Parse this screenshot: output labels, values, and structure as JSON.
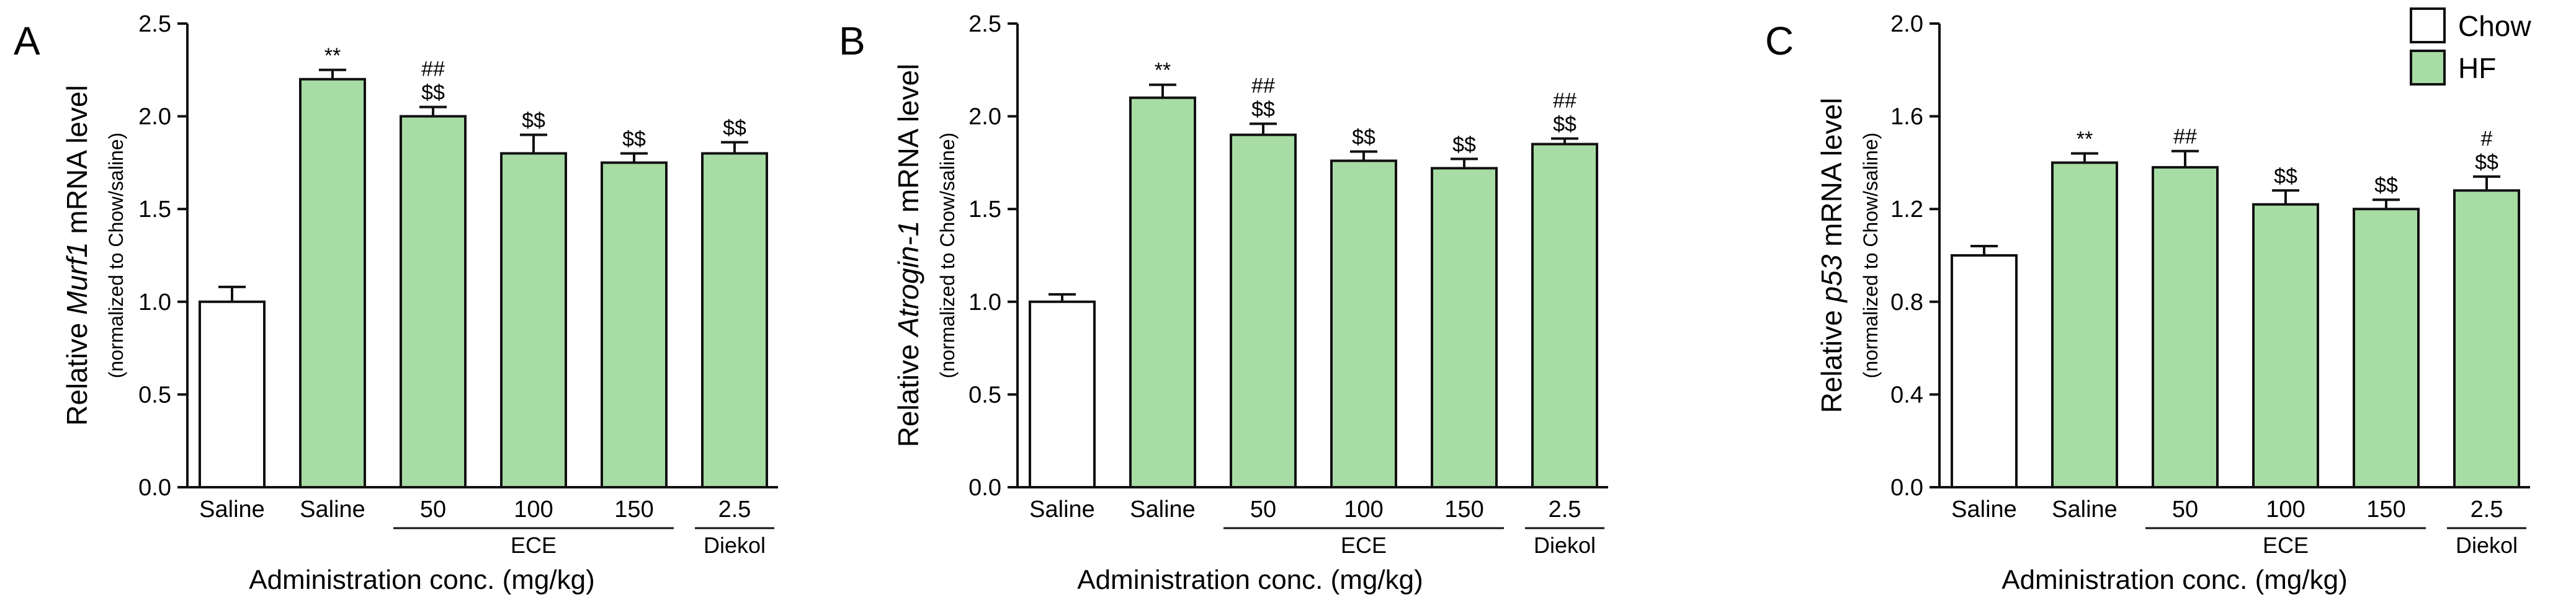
{
  "legend": [
    {
      "label": "Chow",
      "color": "#ffffff"
    },
    {
      "label": "HF",
      "color": "#a8dca5"
    }
  ],
  "chart_data": [
    {
      "type": "bar",
      "panel": "A",
      "ylabel_pre": "Relative ",
      "ylabel_gene": "Murf1",
      "ylabel_post": " mRNA level",
      "ylabel_sub": "(normalized to Chow/saline)",
      "xlabel": "Administration conc. (mg/kg)",
      "ylim": [
        0,
        2.5
      ],
      "yticks": [
        "0.0",
        "0.5",
        "1.0",
        "1.5",
        "2.0",
        "2.5"
      ],
      "categories": [
        "Saline",
        "Saline",
        "50",
        "100",
        "150",
        "2.5"
      ],
      "groups": [
        {
          "label": "ECE",
          "from": 2,
          "to": 4
        },
        {
          "label": "Diekol",
          "from": 5,
          "to": 5
        }
      ],
      "values": [
        1.0,
        2.2,
        2.0,
        1.8,
        1.75,
        1.8
      ],
      "errors": [
        0.08,
        0.05,
        0.05,
        0.1,
        0.05,
        0.06
      ],
      "series_index": [
        0,
        1,
        1,
        1,
        1,
        1
      ],
      "annotations": [
        [
          "**"
        ],
        [
          "##",
          "$$"
        ],
        [
          "$$"
        ],
        [
          "$$"
        ],
        [
          "$$"
        ]
      ],
      "annotation_bars": [
        1,
        2,
        3,
        4,
        5
      ]
    },
    {
      "type": "bar",
      "panel": "B",
      "ylabel_pre": "Relative ",
      "ylabel_gene": "Atrogin-1",
      "ylabel_post": " mRNA level",
      "ylabel_sub": "(normalized to Chow/saline)",
      "xlabel": "Administration conc. (mg/kg)",
      "ylim": [
        0,
        2.5
      ],
      "yticks": [
        "0.0",
        "0.5",
        "1.0",
        "1.5",
        "2.0",
        "2.5"
      ],
      "categories": [
        "Saline",
        "Saline",
        "50",
        "100",
        "150",
        "2.5"
      ],
      "groups": [
        {
          "label": "ECE",
          "from": 2,
          "to": 4
        },
        {
          "label": "Diekol",
          "from": 5,
          "to": 5
        }
      ],
      "values": [
        1.0,
        2.1,
        1.9,
        1.76,
        1.72,
        1.85
      ],
      "errors": [
        0.04,
        0.07,
        0.06,
        0.05,
        0.05,
        0.03
      ],
      "series_index": [
        0,
        1,
        1,
        1,
        1,
        1
      ],
      "annotations": [
        [
          "**"
        ],
        [
          "##",
          "$$"
        ],
        [
          "$$"
        ],
        [
          "$$"
        ],
        [
          "##",
          "$$"
        ]
      ],
      "annotation_bars": [
        1,
        2,
        3,
        4,
        5
      ]
    },
    {
      "type": "bar",
      "panel": "C",
      "ylabel_pre": "Relative ",
      "ylabel_gene": "p53",
      "ylabel_post": " mRNA level",
      "ylabel_sub": "(normalized to Chow/saline)",
      "xlabel": "Administration conc. (mg/kg)",
      "ylim": [
        0,
        2.0
      ],
      "yticks": [
        "0.0",
        "0.4",
        "0.8",
        "1.2",
        "1.6",
        "2.0"
      ],
      "categories": [
        "Saline",
        "Saline",
        "50",
        "100",
        "150",
        "2.5"
      ],
      "groups": [
        {
          "label": "ECE",
          "from": 2,
          "to": 4
        },
        {
          "label": "Diekol",
          "from": 5,
          "to": 5
        }
      ],
      "values": [
        1.0,
        1.4,
        1.38,
        1.22,
        1.2,
        1.28
      ],
      "errors": [
        0.04,
        0.04,
        0.07,
        0.06,
        0.04,
        0.06
      ],
      "series_index": [
        0,
        1,
        1,
        1,
        1,
        1
      ],
      "annotations": [
        [
          "**"
        ],
        [
          "##"
        ],
        [
          "$$"
        ],
        [
          "$$"
        ],
        [
          "#",
          "$$"
        ]
      ],
      "annotation_bars": [
        1,
        2,
        3,
        4,
        5
      ]
    }
  ]
}
